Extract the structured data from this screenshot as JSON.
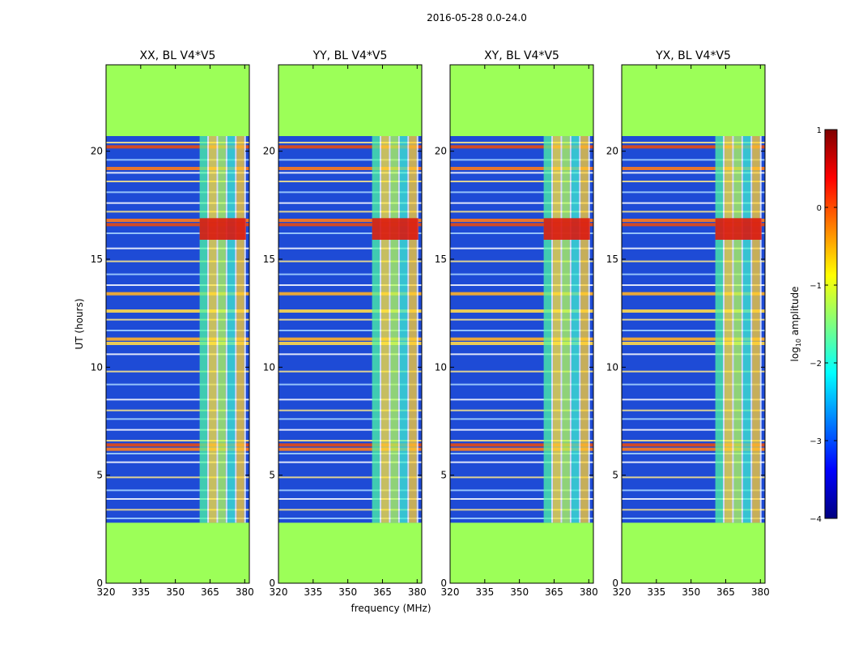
{
  "chart_data": {
    "type": "heatmap",
    "suptitle": "2016-05-28 0.0-24.0",
    "xlabel": "frequency (MHz)",
    "ylabel": "UT (hours)",
    "xlim": [
      320,
      382
    ],
    "ylim": [
      0,
      24
    ],
    "xticks": [
      320,
      335,
      350,
      365,
      380
    ],
    "yticks": [
      0,
      5,
      10,
      15,
      20
    ],
    "data_time_range": [
      2.8,
      20.7
    ],
    "rfi_band_mhz": [
      360.5,
      380.5
    ],
    "panels": [
      {
        "title": "XX, BL V4*V5"
      },
      {
        "title": "YY, BL V4*V5"
      },
      {
        "title": "XY, BL V4*V5"
      },
      {
        "title": "YX, BL V4*V5"
      }
    ],
    "colorbar": {
      "label_prefix": "log",
      "label_sub": "10",
      "label_suffix": " amplitude",
      "range": [
        -4,
        1
      ],
      "ticks": [
        "1",
        "0",
        "−1",
        "−2",
        "−3",
        "−4"
      ],
      "colors": [
        "#00007f",
        "#0000ff",
        "#007fff",
        "#00ffff",
        "#7fff7f",
        "#ffff00",
        "#ff7f00",
        "#ff0000",
        "#7f0000"
      ]
    },
    "masked_color": "#9cff58",
    "background_color": "#1e4bd6",
    "hot_bands_hours": [
      16.6,
      16.8,
      11.3,
      11.1,
      6.4,
      6.2,
      13.4,
      12.6,
      20.2,
      19.2
    ],
    "flag_lines_hours": [
      3.0,
      3.4,
      3.9,
      4.3,
      4.9,
      5.6,
      6.0,
      6.6,
      7.1,
      7.6,
      8.0,
      8.5,
      9.2,
      9.8,
      10.6,
      11.7,
      12.2,
      13.8,
      14.3,
      14.9,
      15.5,
      16.2,
      17.2,
      17.6,
      18.1,
      18.6,
      19.0,
      19.6,
      20.4
    ]
  }
}
